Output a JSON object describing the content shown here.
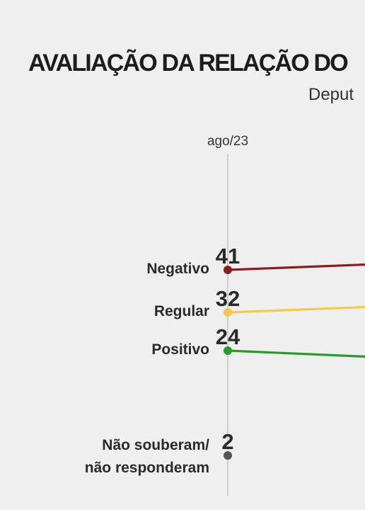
{
  "header": {
    "title": "AVALIAÇÃO DA RELAÇÃO DO",
    "subtitle": "Deput"
  },
  "chart_data": {
    "type": "line",
    "title": "AVALIAÇÃO DA RELAÇÃO DO",
    "subtitle": "Deput",
    "x": [
      "ago/23"
    ],
    "series": [
      {
        "name": "Negativo",
        "values": [
          41
        ],
        "color": "#8e1b1b"
      },
      {
        "name": "Regular",
        "values": [
          32
        ],
        "color": "#f7c948"
      },
      {
        "name": "Positivo",
        "values": [
          24
        ],
        "color": "#2a9a2a"
      },
      {
        "name": "Não souberam/ não responderam",
        "values": [
          2
        ],
        "color": "#555555"
      }
    ],
    "label_lines": {
      "Não souberam/ não responderam": [
        "Não souberam/",
        "não responderam"
      ]
    },
    "continuation": {
      "Negativo": "up",
      "Regular": "up",
      "Positivo": "down"
    },
    "grid": false,
    "legend": "inline-left"
  }
}
